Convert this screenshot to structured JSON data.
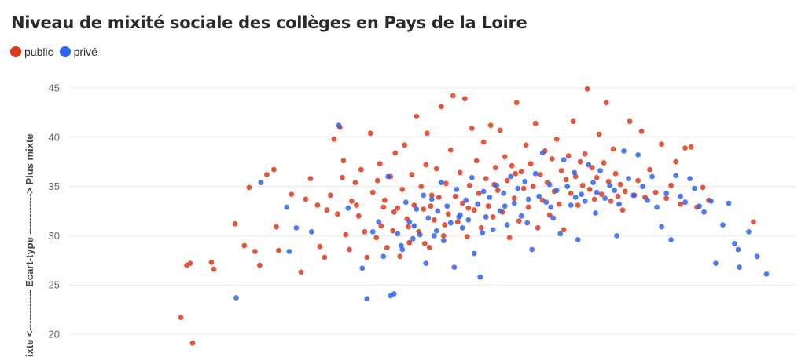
{
  "title": "Niveau de mixité sociale des collèges en Pays de la Loire",
  "legend": [
    {
      "label": "public",
      "color": "#dd3a1c"
    },
    {
      "label": "privé",
      "color": "#2f64f0"
    }
  ],
  "chart_data": {
    "type": "scatter",
    "title": "Niveau de mixité sociale des collèges en Pays de la Loire",
    "ylabel": "Ecart-type <------------ ------------> Plus mixte",
    "ylabel_visible": "ixte <------------ Ecart-type ------------> Plus mixte",
    "ylim": [
      17.5,
      45
    ],
    "yticks": [
      20,
      25,
      30,
      35,
      40,
      45
    ],
    "grid": true,
    "legend_position": "top-left",
    "series": [
      {
        "name": "public",
        "color": "#dd3a1c",
        "points": [
          [
            16.2,
            21.7
          ],
          [
            16.7,
            27.0
          ],
          [
            17.0,
            27.2
          ],
          [
            17.2,
            19.1
          ],
          [
            18.8,
            27.3
          ],
          [
            19.0,
            26.6
          ],
          [
            20.8,
            31.2
          ],
          [
            21.6,
            29.0
          ],
          [
            22.0,
            34.9
          ],
          [
            22.5,
            28.4
          ],
          [
            22.9,
            27.0
          ],
          [
            23.5,
            36.2
          ],
          [
            24.1,
            36.7
          ],
          [
            24.3,
            30.9
          ],
          [
            24.5,
            28.5
          ],
          [
            25.6,
            34.2
          ],
          [
            26.4,
            26.3
          ],
          [
            26.8,
            33.7
          ],
          [
            27.2,
            35.8
          ],
          [
            27.8,
            33.1
          ],
          [
            28.0,
            28.9
          ],
          [
            28.4,
            27.8
          ],
          [
            28.6,
            32.6
          ],
          [
            28.9,
            34.1
          ],
          [
            29.2,
            39.8
          ],
          [
            29.7,
            41.0
          ],
          [
            29.9,
            35.9
          ],
          [
            30.2,
            30.1
          ],
          [
            30.5,
            28.6
          ],
          [
            30.7,
            33.5
          ],
          [
            31.0,
            35.4
          ],
          [
            31.3,
            32.0
          ],
          [
            31.5,
            36.7
          ],
          [
            31.8,
            30.4
          ],
          [
            32.0,
            27.8
          ],
          [
            32.3,
            40.4
          ],
          [
            32.5,
            34.4
          ],
          [
            32.8,
            29.8
          ],
          [
            33.1,
            37.3
          ],
          [
            33.2,
            31.0
          ],
          [
            33.5,
            33.6
          ],
          [
            33.7,
            28.8
          ],
          [
            34.0,
            36.0
          ],
          [
            34.2,
            30.5
          ],
          [
            34.4,
            38.4
          ],
          [
            34.6,
            32.8
          ],
          [
            34.8,
            27.9
          ],
          [
            35.0,
            34.7
          ],
          [
            35.2,
            39.2
          ],
          [
            35.4,
            31.7
          ],
          [
            35.6,
            29.3
          ],
          [
            35.8,
            36.2
          ],
          [
            36.0,
            33.1
          ],
          [
            36.2,
            42.1
          ],
          [
            36.4,
            30.4
          ],
          [
            36.6,
            35.0
          ],
          [
            36.8,
            32.7
          ],
          [
            37.0,
            37.2
          ],
          [
            37.1,
            40.4
          ],
          [
            37.3,
            28.8
          ],
          [
            37.5,
            34.1
          ],
          [
            37.7,
            31.6
          ],
          [
            37.9,
            36.8
          ],
          [
            38.1,
            33.9
          ],
          [
            38.3,
            43.1
          ],
          [
            38.5,
            30.0
          ],
          [
            38.7,
            35.3
          ],
          [
            38.9,
            32.2
          ],
          [
            39.1,
            38.7
          ],
          [
            39.3,
            44.2
          ],
          [
            39.5,
            34.0
          ],
          [
            39.7,
            31.4
          ],
          [
            39.9,
            36.4
          ],
          [
            40.1,
            33.3
          ],
          [
            40.3,
            43.9
          ],
          [
            40.5,
            29.9
          ],
          [
            40.7,
            35.1
          ],
          [
            40.9,
            40.9
          ],
          [
            41.1,
            32.6
          ],
          [
            41.3,
            37.6
          ],
          [
            41.5,
            34.3
          ],
          [
            41.7,
            30.8
          ],
          [
            41.9,
            39.5
          ],
          [
            42.1,
            35.8
          ],
          [
            42.3,
            33.0
          ],
          [
            42.5,
            41.2
          ],
          [
            42.7,
            31.9
          ],
          [
            42.9,
            36.9
          ],
          [
            43.1,
            34.6
          ],
          [
            43.3,
            40.7
          ],
          [
            43.5,
            32.4
          ],
          [
            43.7,
            38.0
          ],
          [
            43.9,
            35.6
          ],
          [
            44.1,
            29.8
          ],
          [
            44.3,
            37.1
          ],
          [
            44.5,
            33.8
          ],
          [
            44.7,
            43.5
          ],
          [
            44.9,
            31.5
          ],
          [
            45.1,
            36.5
          ],
          [
            45.3,
            34.8
          ],
          [
            45.5,
            39.2
          ],
          [
            45.7,
            32.9
          ],
          [
            45.9,
            37.3
          ],
          [
            46.1,
            35.0
          ],
          [
            46.3,
            41.4
          ],
          [
            46.5,
            30.8
          ],
          [
            46.7,
            36.2
          ],
          [
            46.9,
            33.6
          ],
          [
            47.1,
            38.6
          ],
          [
            47.3,
            35.4
          ],
          [
            47.5,
            32.1
          ],
          [
            47.7,
            37.8
          ],
          [
            47.9,
            34.5
          ],
          [
            48.1,
            39.8
          ],
          [
            48.3,
            33.2
          ],
          [
            48.5,
            36.6
          ],
          [
            48.7,
            30.6
          ],
          [
            48.9,
            35.7
          ],
          [
            49.1,
            38.1
          ],
          [
            49.3,
            34.3
          ],
          [
            49.5,
            41.6
          ],
          [
            49.7,
            36.0
          ],
          [
            49.9,
            33.1
          ],
          [
            50.1,
            37.5
          ],
          [
            50.3,
            35.1
          ],
          [
            50.5,
            38.3
          ],
          [
            50.7,
            44.9
          ],
          [
            50.9,
            34.7
          ],
          [
            51.1,
            36.9
          ],
          [
            51.3,
            33.7
          ],
          [
            51.5,
            35.9
          ],
          [
            51.7,
            40.3
          ],
          [
            51.9,
            34.2
          ],
          [
            52.1,
            37.4
          ],
          [
            52.3,
            43.5
          ],
          [
            52.5,
            35.5
          ],
          [
            52.7,
            33.5
          ],
          [
            52.9,
            38.8
          ],
          [
            53.1,
            36.3
          ],
          [
            53.3,
            34.0
          ],
          [
            53.5,
            35.2
          ],
          [
            53.7,
            32.6
          ],
          [
            53.9,
            34.5
          ],
          [
            54.3,
            41.6
          ],
          [
            54.7,
            34.1
          ],
          [
            55.0,
            35.6
          ],
          [
            55.3,
            40.6
          ],
          [
            55.6,
            33.9
          ],
          [
            56.0,
            36.7
          ],
          [
            56.5,
            34.4
          ],
          [
            57.0,
            39.3
          ],
          [
            57.4,
            33.8
          ],
          [
            57.8,
            35.1
          ],
          [
            58.2,
            37.5
          ],
          [
            58.6,
            33.2
          ],
          [
            59.0,
            38.9
          ],
          [
            59.5,
            39.0
          ],
          [
            60.0,
            32.9
          ],
          [
            60.5,
            34.9
          ],
          [
            61.0,
            33.6
          ],
          [
            64.8,
            31.4
          ],
          [
            35.5,
            30.9
          ],
          [
            34.3,
            32.4
          ],
          [
            36.9,
            29.2
          ],
          [
            38.6,
            31.1
          ],
          [
            40.6,
            32.8
          ],
          [
            42.8,
            35.2
          ],
          [
            44.6,
            36.3
          ],
          [
            32.9,
            35.6
          ],
          [
            31.1,
            33.1
          ],
          [
            29.5,
            32.2
          ],
          [
            30.0,
            37.6
          ],
          [
            33.4,
            32.9
          ],
          [
            37.4,
            33.0
          ]
        ]
      },
      {
        "name": "privé",
        "color": "#2f64f0",
        "points": [
          [
            20.9,
            23.7
          ],
          [
            23.0,
            35.4
          ],
          [
            25.2,
            32.9
          ],
          [
            25.4,
            28.4
          ],
          [
            26.0,
            30.8
          ],
          [
            27.3,
            30.4
          ],
          [
            29.6,
            41.2
          ],
          [
            30.4,
            32.8
          ],
          [
            31.6,
            26.7
          ],
          [
            32.0,
            23.6
          ],
          [
            32.5,
            30.4
          ],
          [
            33.0,
            31.4
          ],
          [
            33.4,
            27.9
          ],
          [
            33.8,
            36.0
          ],
          [
            34.0,
            23.9
          ],
          [
            34.3,
            24.1
          ],
          [
            34.6,
            30.2
          ],
          [
            35.0,
            28.6
          ],
          [
            35.3,
            33.4
          ],
          [
            35.6,
            31.4
          ],
          [
            35.9,
            29.7
          ],
          [
            36.2,
            32.7
          ],
          [
            36.5,
            30.1
          ],
          [
            36.8,
            34.1
          ],
          [
            37.0,
            27.2
          ],
          [
            37.2,
            31.8
          ],
          [
            37.5,
            33.7
          ],
          [
            37.7,
            30.0
          ],
          [
            38.0,
            32.5
          ],
          [
            38.3,
            35.4
          ],
          [
            38.5,
            29.5
          ],
          [
            38.8,
            33.0
          ],
          [
            39.1,
            31.3
          ],
          [
            39.4,
            26.8
          ],
          [
            39.6,
            34.7
          ],
          [
            39.9,
            32.1
          ],
          [
            40.1,
            30.8
          ],
          [
            40.4,
            33.6
          ],
          [
            40.6,
            31.6
          ],
          [
            40.9,
            35.9
          ],
          [
            41.1,
            28.2
          ],
          [
            41.4,
            33.2
          ],
          [
            41.6,
            25.8
          ],
          [
            41.9,
            34.5
          ],
          [
            42.1,
            31.9
          ],
          [
            42.4,
            33.9
          ],
          [
            42.7,
            30.6
          ],
          [
            43.0,
            35.1
          ],
          [
            43.3,
            32.5
          ],
          [
            43.6,
            34.3
          ],
          [
            43.9,
            31.1
          ],
          [
            44.2,
            36.0
          ],
          [
            44.5,
            33.3
          ],
          [
            44.8,
            34.8
          ],
          [
            45.1,
            32.0
          ],
          [
            45.4,
            35.5
          ],
          [
            45.7,
            33.7
          ],
          [
            46.0,
            28.6
          ],
          [
            46.3,
            36.3
          ],
          [
            46.6,
            34.0
          ],
          [
            46.9,
            38.4
          ],
          [
            47.2,
            33.4
          ],
          [
            47.5,
            35.2
          ],
          [
            47.8,
            31.8
          ],
          [
            48.1,
            34.6
          ],
          [
            48.4,
            30.2
          ],
          [
            48.7,
            37.7
          ],
          [
            49.0,
            35.0
          ],
          [
            49.3,
            33.1
          ],
          [
            49.6,
            36.4
          ],
          [
            49.9,
            29.6
          ],
          [
            50.2,
            34.2
          ],
          [
            50.5,
            33.5
          ],
          [
            50.8,
            37.2
          ],
          [
            51.2,
            35.4
          ],
          [
            51.5,
            34.4
          ],
          [
            51.8,
            36.6
          ],
          [
            52.2,
            33.8
          ],
          [
            52.6,
            35.1
          ],
          [
            53.0,
            34.6
          ],
          [
            53.4,
            33.2
          ],
          [
            53.8,
            38.6
          ],
          [
            54.2,
            35.8
          ],
          [
            54.6,
            34.1
          ],
          [
            55.0,
            38.2
          ],
          [
            55.4,
            35.0
          ],
          [
            55.8,
            33.6
          ],
          [
            56.2,
            36.0
          ],
          [
            56.6,
            32.9
          ],
          [
            57.0,
            30.9
          ],
          [
            57.4,
            34.3
          ],
          [
            57.8,
            29.6
          ],
          [
            58.2,
            36.1
          ],
          [
            58.6,
            34.0
          ],
          [
            59.0,
            33.4
          ],
          [
            59.4,
            35.8
          ],
          [
            59.8,
            34.8
          ],
          [
            60.2,
            33.0
          ],
          [
            60.6,
            32.4
          ],
          [
            61.2,
            33.5
          ],
          [
            61.6,
            27.2
          ],
          [
            62.2,
            31.1
          ],
          [
            62.7,
            33.3
          ],
          [
            63.2,
            29.2
          ],
          [
            63.5,
            28.6
          ],
          [
            63.6,
            26.8
          ],
          [
            64.4,
            30.4
          ],
          [
            65.1,
            27.9
          ],
          [
            65.9,
            26.1
          ],
          [
            34.9,
            29.0
          ],
          [
            36.0,
            31.0
          ],
          [
            37.9,
            30.5
          ],
          [
            39.8,
            31.9
          ],
          [
            41.8,
            30.3
          ],
          [
            43.7,
            33.0
          ],
          [
            45.6,
            31.3
          ],
          [
            47.6,
            32.9
          ],
          [
            49.7,
            33.9
          ],
          [
            51.4,
            32.3
          ],
          [
            53.2,
            30.0
          ]
        ]
      }
    ]
  }
}
